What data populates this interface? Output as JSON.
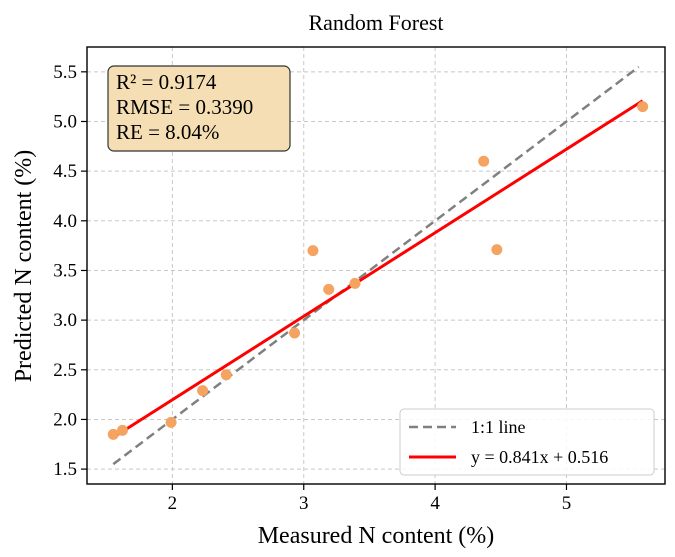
{
  "chart_data": {
    "type": "scatter",
    "title": "Random Forest",
    "xlabel": "Measured N content (%)",
    "ylabel": "Predicted N content (%)",
    "xlim": [
      1.35,
      5.75
    ],
    "ylim": [
      1.35,
      5.75
    ],
    "xticks": [
      2,
      3,
      4,
      5
    ],
    "yticks": [
      1.5,
      2.0,
      2.5,
      3.0,
      3.5,
      4.0,
      4.5,
      5.0,
      5.5
    ],
    "xtick_labels": [
      "2",
      "3",
      "4",
      "5"
    ],
    "ytick_labels": [
      "1.5",
      "2.0",
      "2.5",
      "3.0",
      "3.5",
      "4.0",
      "4.5",
      "5.0",
      "5.5"
    ],
    "grid": true,
    "legend_position": "bottom-right",
    "stats_box": {
      "lines": [
        "R² = 0.9174",
        "RMSE = 0.3390",
        "RE = 8.04%"
      ],
      "background": "#f5deb3"
    },
    "points": {
      "color": "#f4a460",
      "x": [
        1.55,
        1.62,
        1.99,
        2.23,
        2.41,
        2.93,
        3.07,
        3.19,
        3.39,
        4.37,
        4.47,
        5.58
      ],
      "y": [
        1.85,
        1.89,
        1.97,
        2.29,
        2.45,
        2.87,
        3.7,
        3.31,
        3.37,
        4.6,
        3.71,
        5.15
      ]
    },
    "series": [
      {
        "name": "1:1 line",
        "kind": "dashed",
        "color": "#808080",
        "x": [
          1.55,
          5.55
        ],
        "y": [
          1.55,
          5.55
        ]
      },
      {
        "name": "y = 0.841x + 0.516",
        "kind": "solid",
        "color": "#ff0000",
        "x": [
          1.55,
          5.58
        ],
        "y": [
          1.8196,
          5.209
        ]
      }
    ]
  }
}
